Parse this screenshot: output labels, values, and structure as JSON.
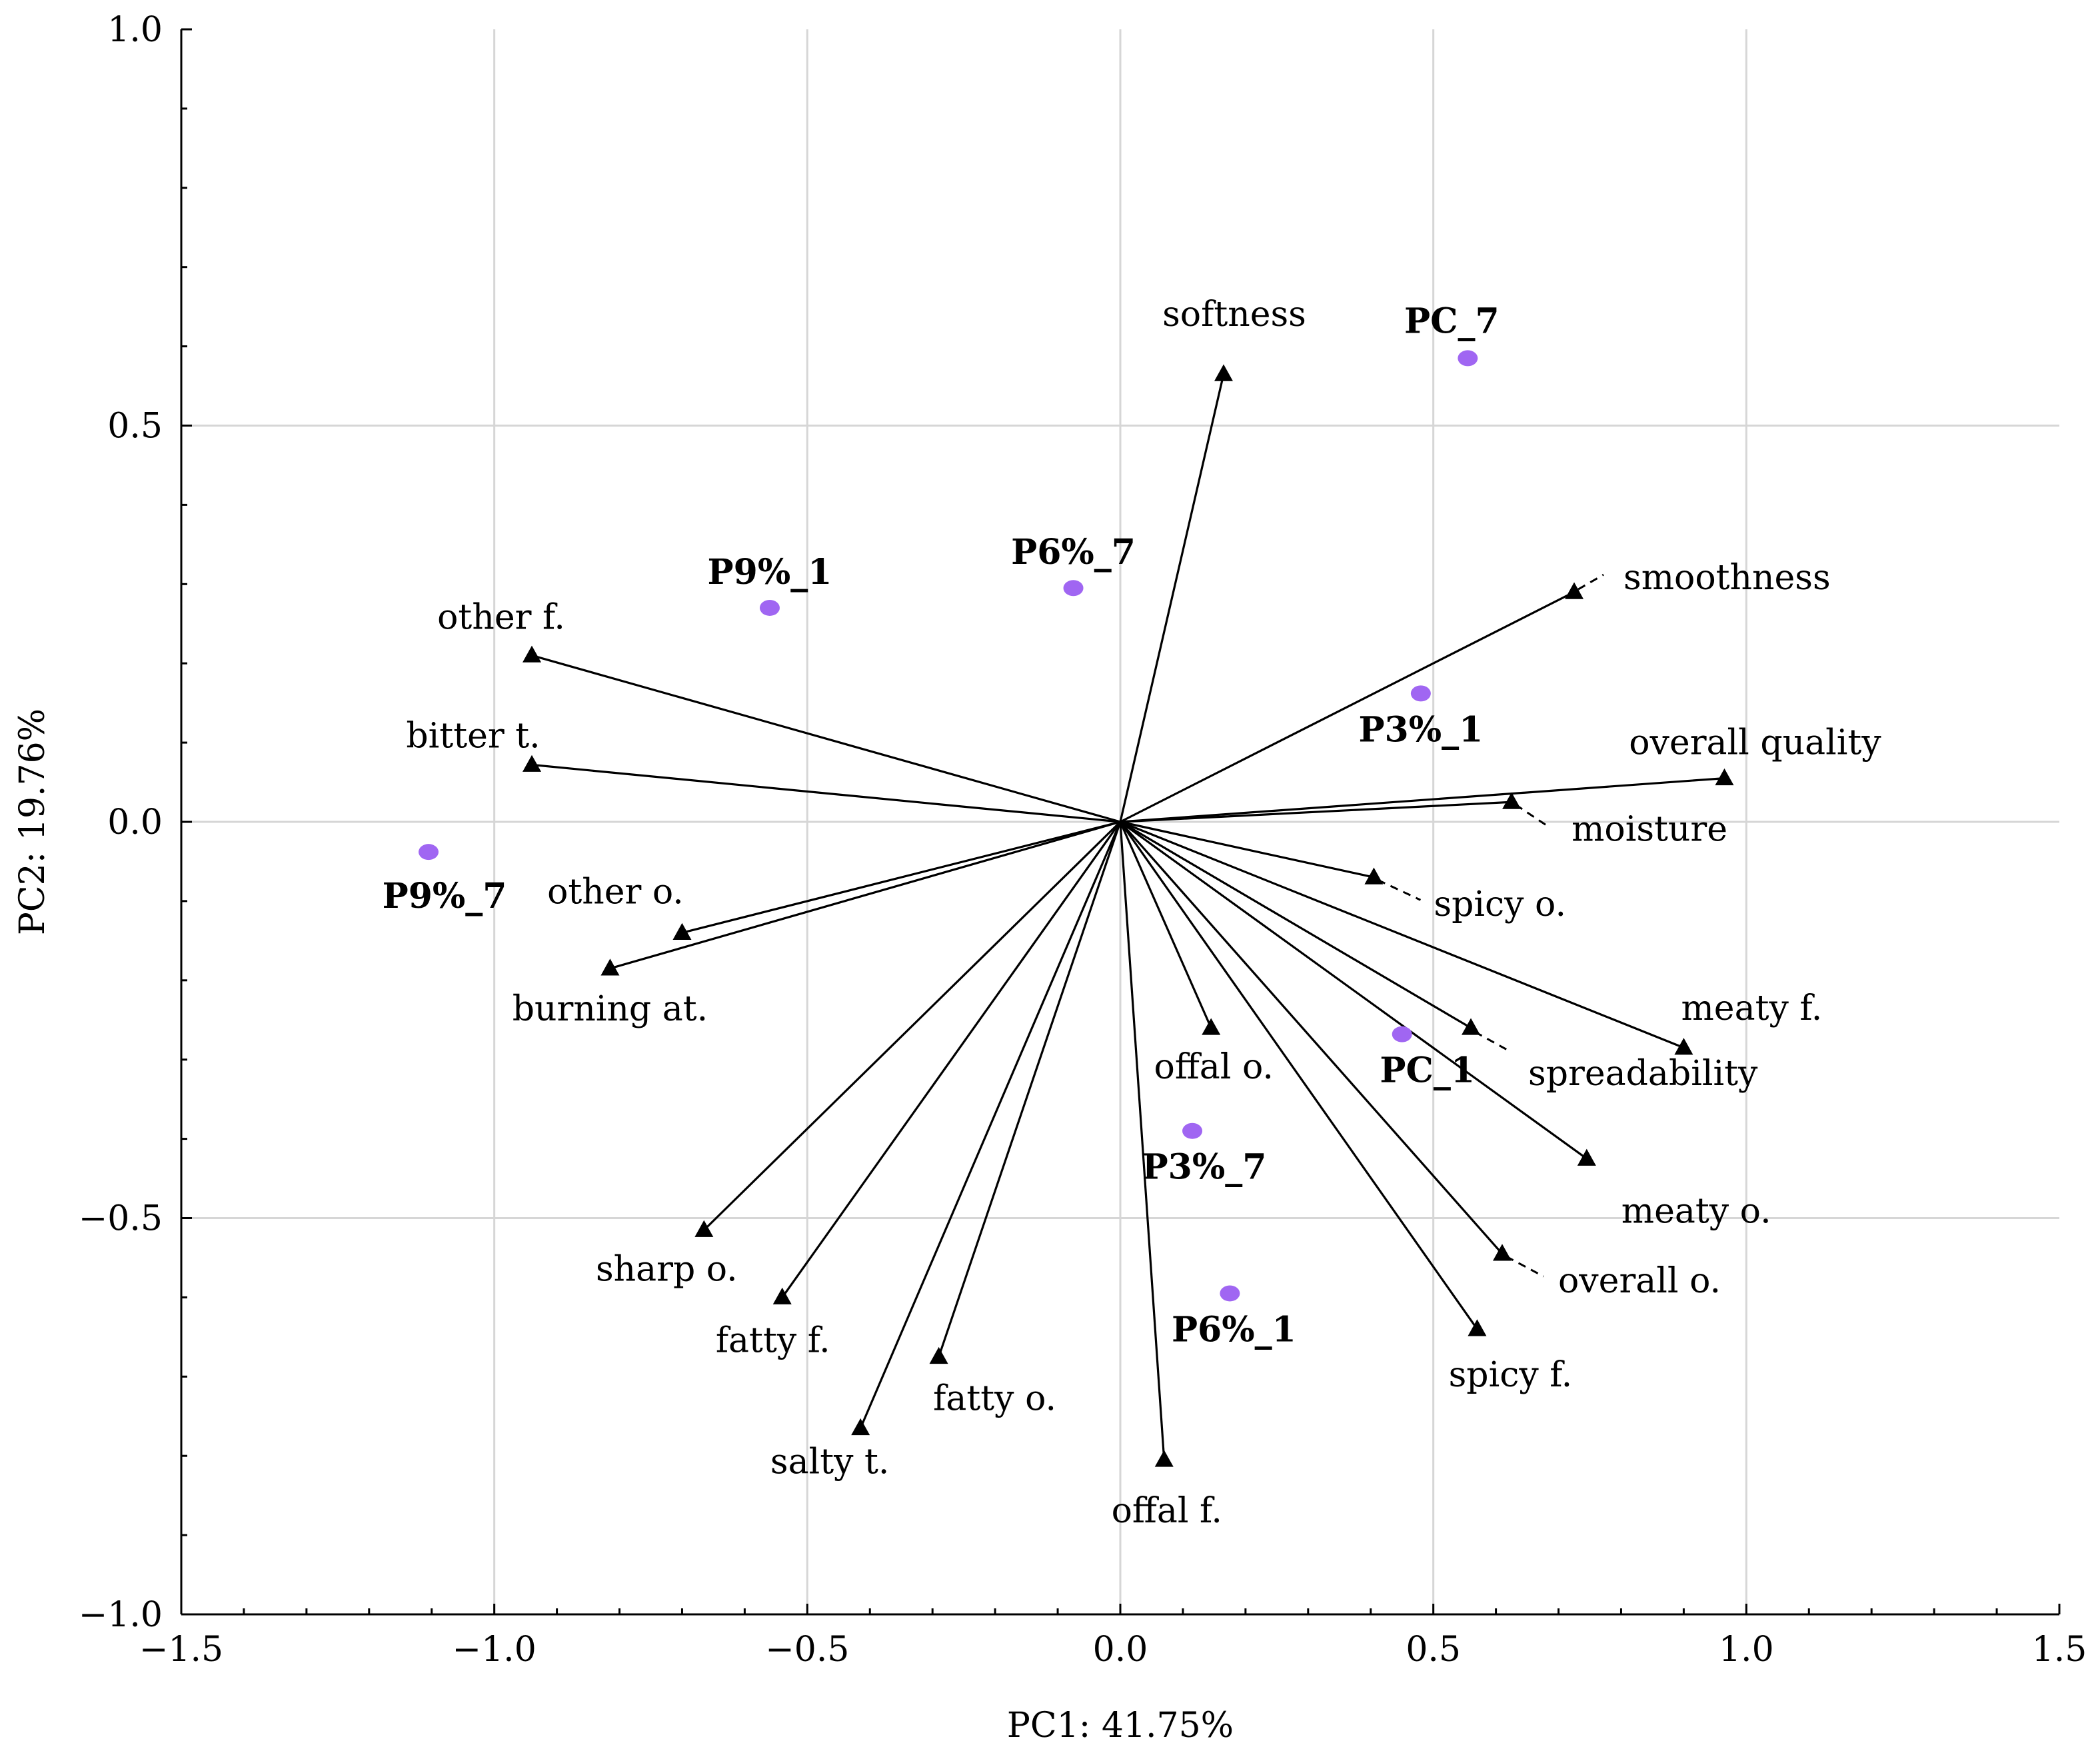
{
  "chart_data": {
    "type": "scatter",
    "subtype": "pca-biplot",
    "xlabel": "PC1: 41.75%",
    "ylabel": "PC2: 19.76%",
    "xlim": [
      -1.5,
      1.5
    ],
    "ylim": [
      -1.0,
      1.0
    ],
    "xticks": [
      -1.5,
      -1.0,
      -0.5,
      0.0,
      0.5,
      1.0,
      1.5
    ],
    "yticks": [
      -1.0,
      -0.5,
      0.0,
      0.5,
      1.0
    ],
    "xtick_labels": [
      "−1.5",
      "−1.0",
      "−0.5",
      "0.0",
      "0.5",
      "1.0",
      "1.5"
    ],
    "ytick_labels": [
      "−1.0",
      "−0.5",
      "0.0",
      "0.5",
      "1.0"
    ],
    "grid": true,
    "colors": {
      "samples": "#a066f2",
      "vectors": "#000000",
      "grid": "#d6d6d6"
    },
    "loadings": [
      {
        "name": "softness",
        "x": 0.165,
        "y": 0.565
      },
      {
        "name": "smoothness",
        "x": 0.725,
        "y": 0.29
      },
      {
        "name": "overall quality",
        "x": 0.965,
        "y": 0.055
      },
      {
        "name": "moisture",
        "x": 0.625,
        "y": 0.025
      },
      {
        "name": "spicy o.",
        "x": 0.405,
        "y": -0.07
      },
      {
        "name": "meaty f.",
        "x": 0.9,
        "y": -0.285
      },
      {
        "name": "spreadability",
        "x": 0.56,
        "y": -0.26
      },
      {
        "name": "meaty o.",
        "x": 0.745,
        "y": -0.425
      },
      {
        "name": "overall o.",
        "x": 0.61,
        "y": -0.545
      },
      {
        "name": "spicy f.",
        "x": 0.57,
        "y": -0.64
      },
      {
        "name": "offal o.",
        "x": 0.145,
        "y": -0.26
      },
      {
        "name": "offal f.",
        "x": 0.07,
        "y": -0.805
      },
      {
        "name": "fatty o.",
        "x": -0.29,
        "y": -0.675
      },
      {
        "name": "salty t.",
        "x": -0.415,
        "y": -0.765
      },
      {
        "name": "fatty f.",
        "x": -0.54,
        "y": -0.6
      },
      {
        "name": "sharp o.",
        "x": -0.665,
        "y": -0.515
      },
      {
        "name": "burning at.",
        "x": -0.815,
        "y": -0.185
      },
      {
        "name": "other o.",
        "x": -0.7,
        "y": -0.14
      },
      {
        "name": "bitter t.",
        "x": -0.94,
        "y": 0.072
      },
      {
        "name": "other f.",
        "x": -0.94,
        "y": 0.21
      }
    ],
    "scores": [
      {
        "name": "PC_7",
        "x": 0.555,
        "y": 0.585
      },
      {
        "name": "P6%_7",
        "x": -0.075,
        "y": 0.295
      },
      {
        "name": "P9%_1",
        "x": -0.56,
        "y": 0.27
      },
      {
        "name": "P3%_1",
        "x": 0.48,
        "y": 0.162
      },
      {
        "name": "P9%_7",
        "x": -1.105,
        "y": -0.038
      },
      {
        "name": "PC_1",
        "x": 0.45,
        "y": -0.268
      },
      {
        "name": "P3%_7",
        "x": 0.115,
        "y": -0.39
      },
      {
        "name": "P6%_1",
        "x": 0.175,
        "y": -0.595
      }
    ]
  }
}
